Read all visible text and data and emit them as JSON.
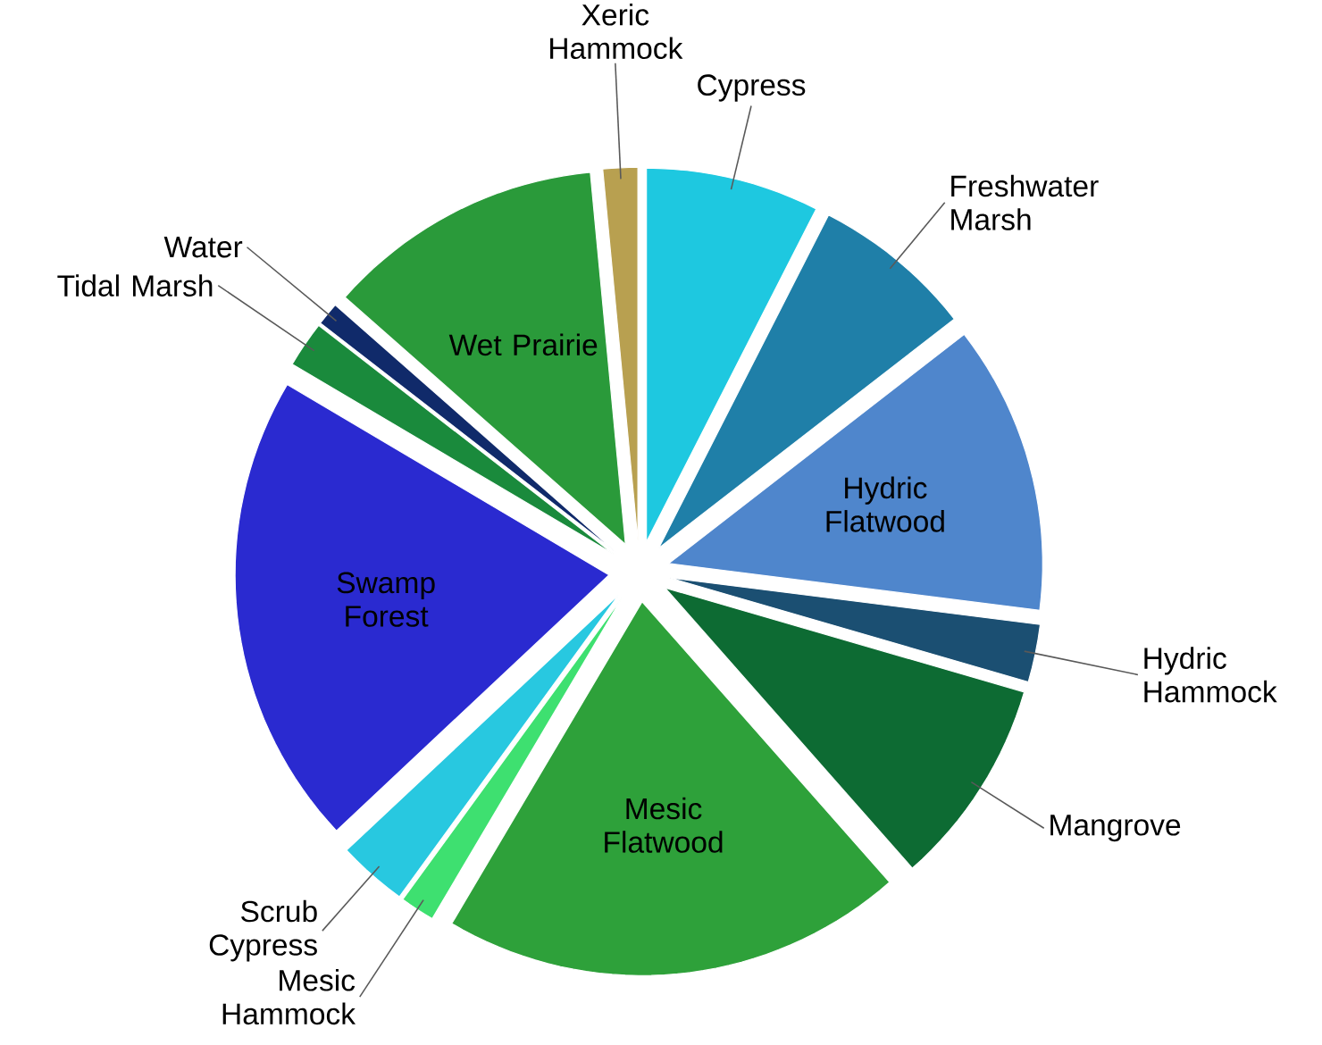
{
  "chart_data": {
    "type": "pie",
    "categories": [
      "Cypress",
      "Freshwater Marsh",
      "Hydric Flatwood",
      "Hydric Hammock",
      "Mangrove",
      "Mesic Flatwood",
      "Mesic Hammock",
      "Scrub Cypress",
      "Swamp Forest",
      "Tidal Marsh",
      "Water",
      "Wet Prairie",
      "Xeric Hammock"
    ],
    "values": [
      7.5,
      7,
      12.5,
      2.5,
      9,
      20,
      1.5,
      3,
      20.5,
      2,
      1,
      12,
      1.5
    ],
    "colors": [
      "#1ec8e0",
      "#1f7fa8",
      "#4f86cc",
      "#1b4f72",
      "#0d6b33",
      "#2ea13a",
      "#3ee070",
      "#28c8e0",
      "#2a2ad0",
      "#1a8a3c",
      "#102a6a",
      "#2a9a3a",
      "#b8a050"
    ]
  }
}
